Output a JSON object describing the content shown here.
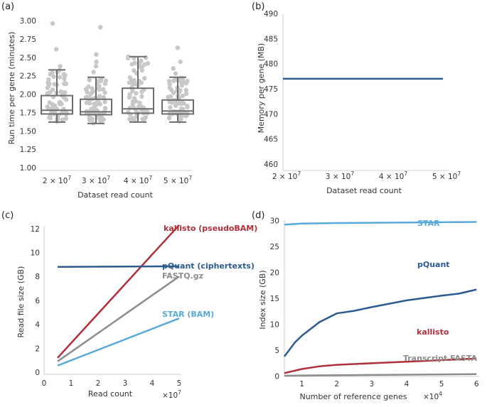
{
  "colors": {
    "red": "#b0303a",
    "darkblue": "#2c5b8e",
    "gray": "#8c8c8c",
    "lightblue": "#5aa9dc",
    "points": "#c8c8c8",
    "box": "#6e6e6e"
  },
  "chart_data": [
    {
      "panel": "(a)",
      "type": "box",
      "xlabel": "Dataset read count",
      "ylabel": "Run time per gene (minutes)",
      "ylim": [
        1.0,
        3.0
      ],
      "yticks": [
        "1.00",
        "1.25",
        "1.50",
        "1.75",
        "2.00",
        "2.25",
        "2.50",
        "2.75",
        "3.00"
      ],
      "categories": [
        {
          "base": "2 × 10",
          "exp": "7"
        },
        {
          "base": "3 × 10",
          "exp": "7"
        },
        {
          "base": "4 × 10",
          "exp": "7"
        },
        {
          "base": "5 × 10",
          "exp": "7"
        }
      ],
      "boxes": [
        {
          "whislo": 1.62,
          "q1": 1.73,
          "med": 1.78,
          "q3": 1.98,
          "whishi": 2.33,
          "fliers": [
            2.38,
            2.61,
            2.96
          ]
        },
        {
          "whislo": 1.6,
          "q1": 1.72,
          "med": 1.76,
          "q3": 1.93,
          "whishi": 2.23,
          "fliers": [
            2.3,
            2.38,
            2.44,
            2.54,
            2.91
          ]
        },
        {
          "whislo": 1.62,
          "q1": 1.74,
          "med": 1.8,
          "q3": 2.08,
          "whishi": 2.51,
          "fliers": []
        },
        {
          "whislo": 1.62,
          "q1": 1.73,
          "med": 1.77,
          "q3": 1.92,
          "whishi": 2.23,
          "fliers": [
            2.28,
            2.35,
            2.44,
            2.63
          ]
        }
      ]
    },
    {
      "panel": "(b)",
      "type": "line",
      "xlabel": "Dataset read count",
      "ylabel": "Memory per gene (MB)",
      "ylim": [
        460,
        490
      ],
      "yticks": [
        "460",
        "465",
        "470",
        "475",
        "480",
        "485",
        "490"
      ],
      "xlim": [
        2,
        5
      ],
      "xticks": [
        {
          "base": "2 × 10",
          "exp": "7"
        },
        {
          "base": "3 × 10",
          "exp": "7"
        },
        {
          "base": "4 × 10",
          "exp": "7"
        },
        {
          "base": "5 × 10",
          "exp": "7"
        }
      ],
      "series": [
        {
          "name": "memory",
          "x": [
            2,
            5
          ],
          "values": [
            477,
            477
          ]
        }
      ]
    },
    {
      "panel": "(c)",
      "type": "line",
      "xlabel": "Read count",
      "xmult": "×10",
      "xmult_exp": "7",
      "ylabel": "Read file size (GB)",
      "xlim": [
        0,
        5
      ],
      "ylim": [
        0,
        13
      ],
      "xticks": [
        "0",
        "1",
        "2",
        "3",
        "4",
        "5"
      ],
      "yticks": [
        "0",
        "2",
        "4",
        "6",
        "8",
        "10",
        "12"
      ],
      "series": [
        {
          "name": "kallisto (pseudoBAM)",
          "x": [
            0.5,
            5
          ],
          "values": [
            1.2,
            12.3
          ]
        },
        {
          "name": "pQuant (ciphertexts)",
          "x": [
            0.5,
            5
          ],
          "values": [
            8.8,
            8.85
          ]
        },
        {
          "name": "FASTQ.gz",
          "x": [
            0.5,
            5
          ],
          "values": [
            0.9,
            8.0
          ]
        },
        {
          "name": "STAR (BAM)",
          "x": [
            0.5,
            5
          ],
          "values": [
            0.55,
            4.5
          ]
        }
      ]
    },
    {
      "panel": "(d)",
      "type": "line",
      "xlabel": "Number of reference genes",
      "xmult": "×10",
      "xmult_exp": "4",
      "ylabel": "Index size (GB)",
      "xlim": [
        0.5,
        6.2
      ],
      "ylim": [
        -1,
        31
      ],
      "xticks": [
        "1",
        "2",
        "3",
        "4",
        "5",
        "6"
      ],
      "yticks": [
        "0",
        "5",
        "10",
        "15",
        "20",
        "25",
        "30"
      ],
      "series": [
        {
          "name": "STAR",
          "x": [
            0.5,
            1,
            2,
            3,
            4,
            5,
            6
          ],
          "values": [
            29.2,
            29.4,
            29.5,
            29.55,
            29.6,
            29.65,
            29.7
          ]
        },
        {
          "name": "pQuant",
          "x": [
            0.5,
            0.8,
            1,
            1.5,
            2,
            2.5,
            3,
            4,
            5,
            5.5,
            6
          ],
          "values": [
            3.8,
            6.5,
            7.8,
            10.4,
            12.1,
            12.6,
            13.3,
            14.6,
            15.5,
            15.9,
            16.7
          ]
        },
        {
          "name": "kallisto",
          "x": [
            0.5,
            1,
            1.5,
            2,
            3,
            4,
            5,
            6
          ],
          "values": [
            0.6,
            1.4,
            1.9,
            2.2,
            2.5,
            2.8,
            3.1,
            3.4
          ]
        },
        {
          "name": "Transcript FASTA",
          "x": [
            0.5,
            1,
            2,
            3,
            4,
            5,
            6
          ],
          "values": [
            0.1,
            0.15,
            0.2,
            0.25,
            0.3,
            0.35,
            0.4
          ]
        }
      ]
    }
  ]
}
